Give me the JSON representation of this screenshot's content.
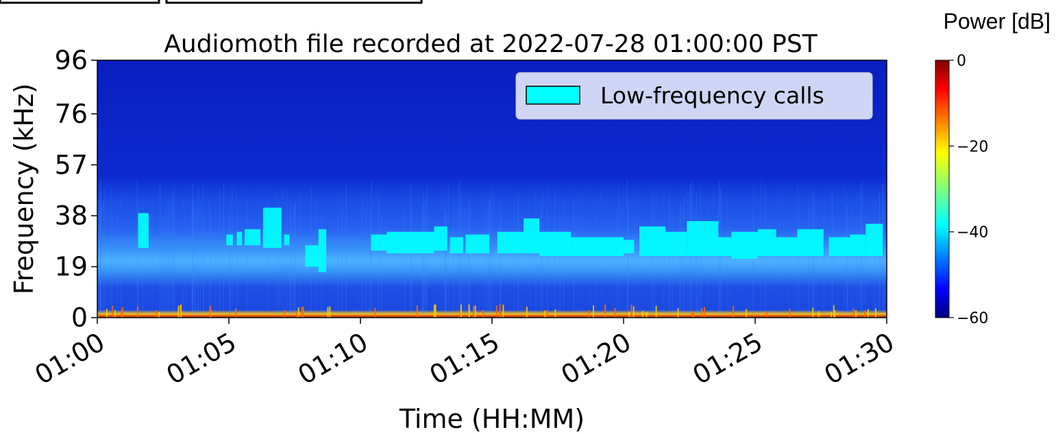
{
  "chart_data": {
    "type": "heatmap",
    "title": "Audiomoth file recorded at 2022-07-28 01:00:00 PST",
    "xlabel": "Time (HH:MM)",
    "ylabel": "Frequency (kHz)",
    "x_ticks": [
      "01:00",
      "01:05",
      "01:10",
      "01:15",
      "01:20",
      "01:25",
      "01:30"
    ],
    "y_ticks": [
      0,
      19,
      38,
      57,
      76,
      96
    ],
    "ylim": [
      0,
      96
    ],
    "xlim": [
      "01:00",
      "01:30"
    ],
    "colorbar": {
      "label": "Power [dB]",
      "range": [
        -60,
        0
      ],
      "ticks": [
        0,
        -20,
        -40,
        -60
      ],
      "colormap": "jet"
    },
    "legend": {
      "position": "top-right",
      "entries": [
        {
          "label": "Low-frequency calls",
          "color": "#00ffff"
        }
      ]
    },
    "background_colors": {
      "upper": "#0a24c8",
      "mid": "#1c4ee8",
      "band": "#3fa3ff",
      "annotation": "#00ffff"
    },
    "calls": [
      {
        "start_min": 1.55,
        "end_min": 1.95,
        "f_low": 26,
        "f_high": 39
      },
      {
        "start_min": 4.9,
        "end_min": 5.15,
        "f_low": 27,
        "f_high": 31
      },
      {
        "start_min": 5.3,
        "end_min": 5.5,
        "f_low": 27,
        "f_high": 32
      },
      {
        "start_min": 5.6,
        "end_min": 6.2,
        "f_low": 27,
        "f_high": 33
      },
      {
        "start_min": 6.3,
        "end_min": 7.0,
        "f_low": 26,
        "f_high": 41
      },
      {
        "start_min": 7.1,
        "end_min": 7.3,
        "f_low": 27,
        "f_high": 31
      },
      {
        "start_min": 7.9,
        "end_min": 8.4,
        "f_low": 19,
        "f_high": 27
      },
      {
        "start_min": 8.4,
        "end_min": 8.7,
        "f_low": 17,
        "f_high": 33
      },
      {
        "start_min": 10.4,
        "end_min": 11.0,
        "f_low": 25,
        "f_high": 31
      },
      {
        "start_min": 11.0,
        "end_min": 12.8,
        "f_low": 24,
        "f_high": 32
      },
      {
        "start_min": 12.8,
        "end_min": 13.3,
        "f_low": 25,
        "f_high": 34
      },
      {
        "start_min": 13.4,
        "end_min": 13.9,
        "f_low": 24,
        "f_high": 30
      },
      {
        "start_min": 14.0,
        "end_min": 14.9,
        "f_low": 24,
        "f_high": 31
      },
      {
        "start_min": 15.2,
        "end_min": 16.2,
        "f_low": 24,
        "f_high": 32
      },
      {
        "start_min": 16.2,
        "end_min": 16.8,
        "f_low": 24,
        "f_high": 37
      },
      {
        "start_min": 16.8,
        "end_min": 18.0,
        "f_low": 23,
        "f_high": 32
      },
      {
        "start_min": 18.0,
        "end_min": 20.0,
        "f_low": 23,
        "f_high": 30
      },
      {
        "start_min": 20.0,
        "end_min": 20.4,
        "f_low": 24,
        "f_high": 29
      },
      {
        "start_min": 20.6,
        "end_min": 21.6,
        "f_low": 23,
        "f_high": 34
      },
      {
        "start_min": 21.6,
        "end_min": 22.4,
        "f_low": 23,
        "f_high": 32
      },
      {
        "start_min": 22.4,
        "end_min": 23.6,
        "f_low": 23,
        "f_high": 36
      },
      {
        "start_min": 23.6,
        "end_min": 24.1,
        "f_low": 23,
        "f_high": 30
      },
      {
        "start_min": 24.1,
        "end_min": 25.1,
        "f_low": 22,
        "f_high": 32
      },
      {
        "start_min": 25.1,
        "end_min": 25.8,
        "f_low": 23,
        "f_high": 33
      },
      {
        "start_min": 25.8,
        "end_min": 26.6,
        "f_low": 23,
        "f_high": 30
      },
      {
        "start_min": 26.6,
        "end_min": 27.6,
        "f_low": 23,
        "f_high": 33
      },
      {
        "start_min": 27.8,
        "end_min": 28.6,
        "f_low": 23,
        "f_high": 30
      },
      {
        "start_min": 28.6,
        "end_min": 29.2,
        "f_low": 23,
        "f_high": 31
      },
      {
        "start_min": 29.2,
        "end_min": 29.85,
        "f_low": 23,
        "f_high": 35
      }
    ]
  }
}
